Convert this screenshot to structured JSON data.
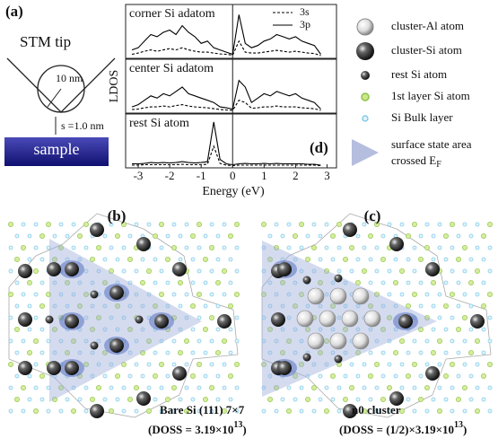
{
  "panel_a": {
    "label": "(a)",
    "tip": "STM tip",
    "radius": "10 nm",
    "gap": "s =1.0 nm",
    "sample": "sample"
  },
  "chart_data": {
    "type": "line",
    "panel_label": "(d)",
    "x_label": "Energy (eV)",
    "y_label": "LDOS",
    "xlim": [
      -3.4,
      3.3
    ],
    "xticks": [
      -3,
      -2,
      -1,
      0,
      1,
      2,
      3
    ],
    "x": [
      -3.2,
      -3.0,
      -2.8,
      -2.6,
      -2.4,
      -2.2,
      -2.0,
      -1.8,
      -1.6,
      -1.4,
      -1.2,
      -1.0,
      -0.8,
      -0.6,
      -0.4,
      -0.2,
      0,
      0.2,
      0.4,
      0.6,
      0.8,
      1.0,
      1.2,
      1.4,
      1.6,
      1.8,
      2.0,
      2.2,
      2.4,
      2.6,
      2.8
    ],
    "panels": [
      {
        "title": "corner Si adatom",
        "ylim": [
          0,
          1.1
        ],
        "series": [
          {
            "name": "3s",
            "style": "dashed",
            "color": "#000000",
            "values": [
              0.05,
              0.08,
              0.12,
              0.15,
              0.12,
              0.15,
              0.18,
              0.15,
              0.2,
              0.15,
              0.12,
              0.1,
              0.1,
              0.08,
              0.06,
              0.05,
              0.03,
              0.35,
              0.1,
              0.08,
              0.08,
              0.1,
              0.12,
              0.14,
              0.12,
              0.1,
              0.12,
              0.1,
              0.08,
              0.07,
              0.02
            ]
          },
          {
            "name": "3p",
            "style": "solid",
            "color": "#000000",
            "values": [
              0.15,
              0.2,
              0.35,
              0.5,
              0.45,
              0.55,
              0.6,
              0.5,
              0.7,
              0.55,
              0.45,
              0.3,
              0.35,
              0.2,
              0.15,
              0.1,
              0.05,
              0.95,
              0.3,
              0.2,
              0.25,
              0.35,
              0.4,
              0.5,
              0.45,
              0.4,
              0.45,
              0.35,
              0.3,
              0.25,
              0.05
            ]
          }
        ]
      },
      {
        "title": "center Si adatom",
        "ylim": [
          0,
          1.1
        ],
        "series": [
          {
            "name": "3s",
            "style": "dashed",
            "color": "#000000",
            "values": [
              0.04,
              0.05,
              0.08,
              0.1,
              0.1,
              0.12,
              0.1,
              0.13,
              0.15,
              0.12,
              0.1,
              0.09,
              0.08,
              0.06,
              0.04,
              0.03,
              0.02,
              0.25,
              0.2,
              0.07,
              0.08,
              0.1,
              0.1,
              0.12,
              0.1,
              0.1,
              0.1,
              0.08,
              0.07,
              0.06,
              0.02
            ]
          },
          {
            "name": "3p",
            "style": "solid",
            "color": "#000000",
            "values": [
              0.1,
              0.15,
              0.25,
              0.35,
              0.3,
              0.4,
              0.35,
              0.45,
              0.55,
              0.4,
              0.35,
              0.3,
              0.25,
              0.2,
              0.1,
              0.08,
              0.05,
              0.7,
              0.55,
              0.2,
              0.3,
              0.4,
              0.35,
              0.45,
              0.4,
              0.35,
              0.4,
              0.3,
              0.25,
              0.2,
              0.05
            ]
          }
        ]
      },
      {
        "title": "rest Si atom",
        "ylim": [
          0,
          1.1
        ],
        "series": [
          {
            "name": "3s",
            "style": "dashed",
            "color": "#000000",
            "values": [
              0.02,
              0.02,
              0.03,
              0.03,
              0.03,
              0.03,
              0.03,
              0.03,
              0.04,
              0.03,
              0.03,
              0.03,
              0.04,
              0.45,
              0.06,
              0.02,
              0.01,
              0.02,
              0.02,
              0.02,
              0.02,
              0.02,
              0.02,
              0.02,
              0.02,
              0.02,
              0.02,
              0.02,
              0.02,
              0.02,
              0.01
            ]
          },
          {
            "name": "3p",
            "style": "solid",
            "color": "#000000",
            "values": [
              0.05,
              0.05,
              0.06,
              0.08,
              0.07,
              0.08,
              0.07,
              0.08,
              0.1,
              0.08,
              0.07,
              0.08,
              0.1,
              1.0,
              0.15,
              0.05,
              0.03,
              0.05,
              0.06,
              0.05,
              0.05,
              0.06,
              0.05,
              0.06,
              0.05,
              0.05,
              0.05,
              0.05,
              0.04,
              0.04,
              0.02
            ]
          }
        ]
      }
    ]
  },
  "legend": {
    "items": [
      "cluster-Al atom",
      "cluster-Si atom",
      "rest Si atom",
      "1st layer Si atom",
      "Si Bulk layer"
    ],
    "surface_lines": [
      "surface state area",
      "crossed E"
    ],
    "surface_sub": "F"
  },
  "panel_b": {
    "label": "(b)",
    "caption": "Bare Si (111) 7×7",
    "doss_prefix": "(DOSS = 3.19×10",
    "doss_exp": "13",
    "doss_suffix": ")"
  },
  "panel_c": {
    "label": "(c)",
    "caption": "n0 cluster",
    "doss_prefix": "(DOSS = (1/2)×3.19×10",
    "doss_exp": "13",
    "doss_suffix": ")"
  }
}
